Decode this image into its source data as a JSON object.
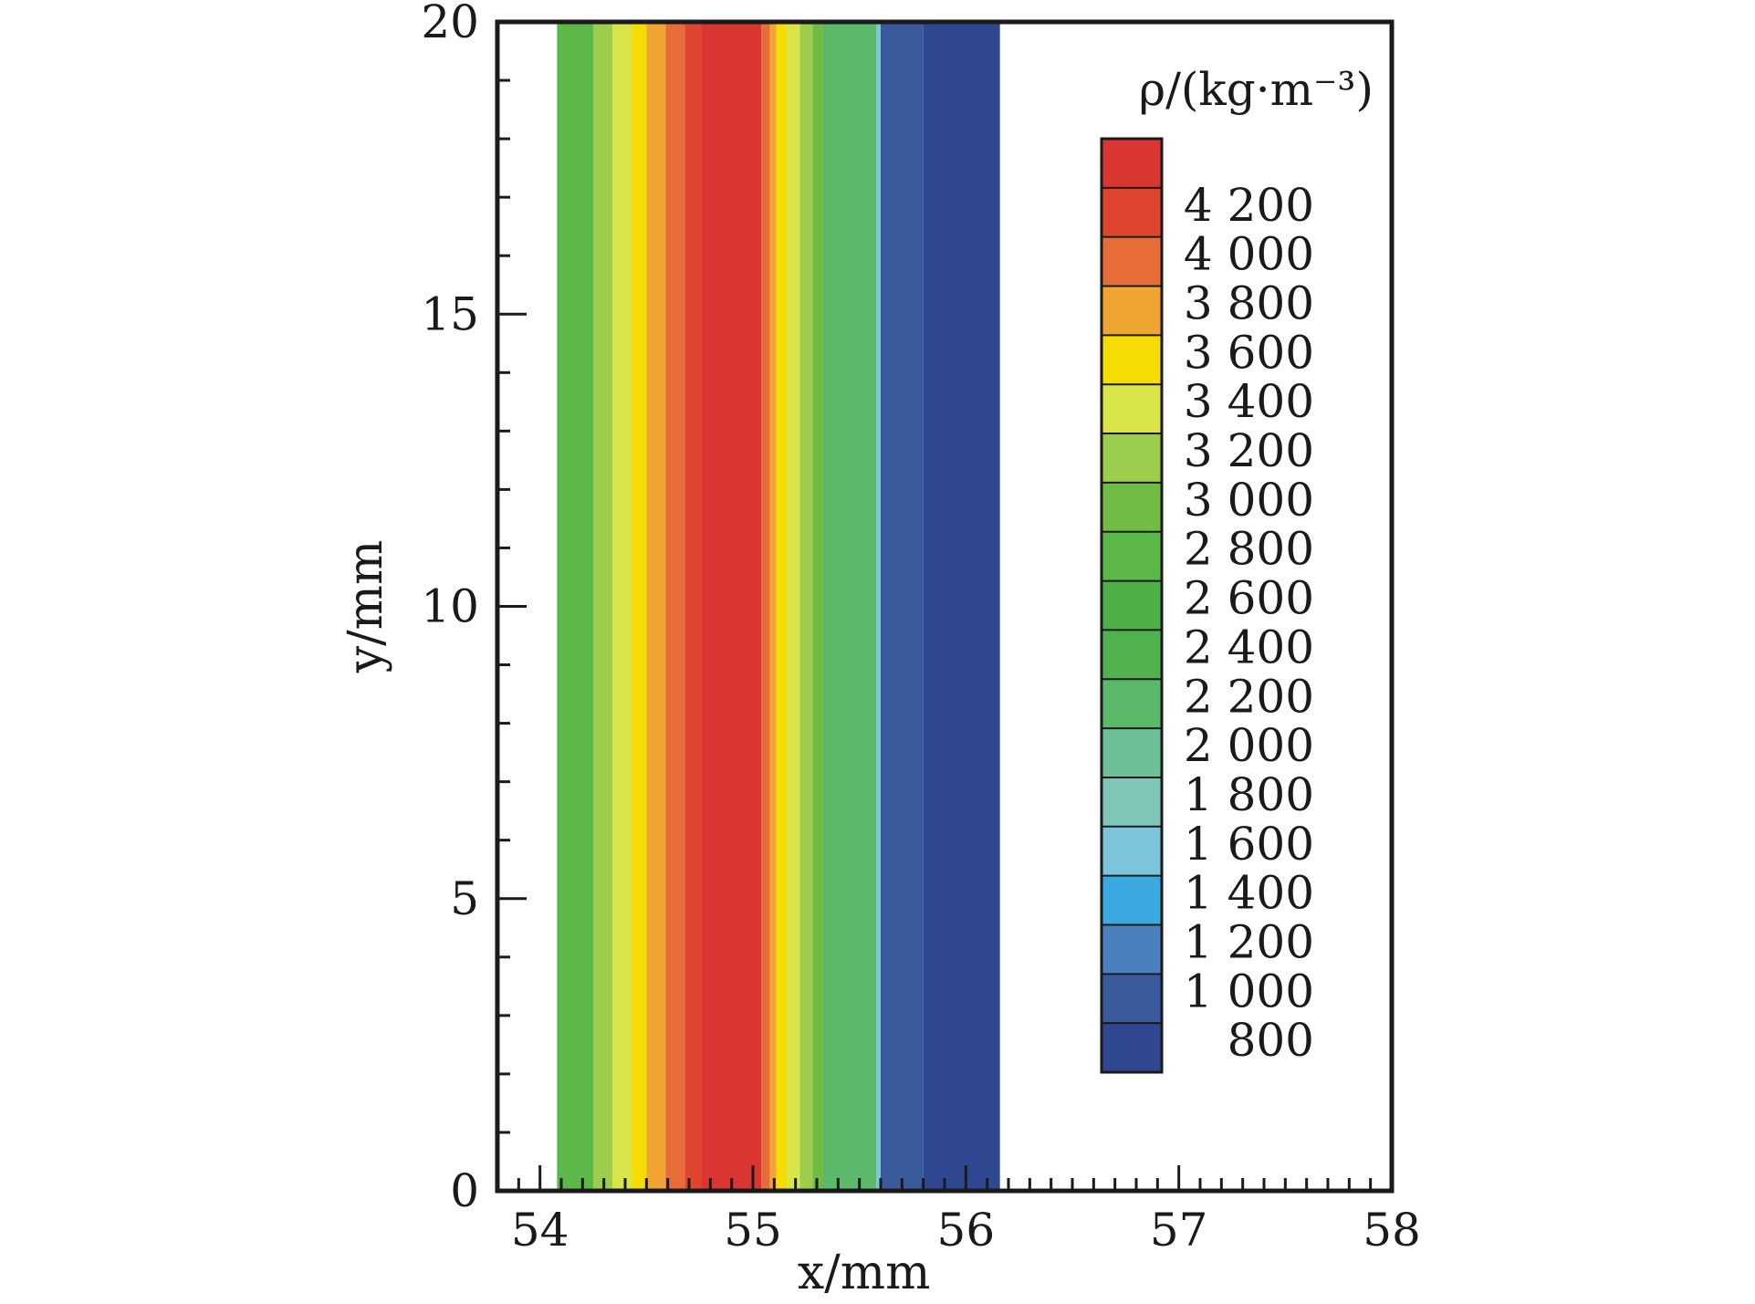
{
  "chart_data": {
    "type": "heatmap",
    "title": "",
    "xlabel": "x/mm",
    "ylabel": "y/mm",
    "xlim": [
      53.8,
      58
    ],
    "ylim": [
      0,
      20
    ],
    "x_ticks": [
      54,
      55,
      56,
      57,
      58
    ],
    "x_tick_labels": [
      "54",
      "55",
      "56",
      "57",
      "58"
    ],
    "y_ticks": [
      0,
      5,
      10,
      15,
      20
    ],
    "y_tick_labels": [
      "0",
      "5",
      "10",
      "15",
      "20"
    ],
    "x_minor_step": 0.1,
    "y_minor_step": 1,
    "grid": false,
    "colorbar": {
      "title": "ρ/(kg·m⁻³)",
      "placement": "top-right",
      "levels": [
        800,
        1000,
        1200,
        1400,
        1600,
        1800,
        2000,
        2200,
        2400,
        2600,
        2800,
        3000,
        3200,
        3400,
        3600,
        3800,
        4000,
        4200
      ],
      "labels": [
        "800",
        "1 000",
        "1 200",
        "1 400",
        "1 600",
        "1 800",
        "2 000",
        "2 200",
        "2 400",
        "2 600",
        "2 800",
        "3 000",
        "3 200",
        "3 400",
        "3 600",
        "3 800",
        "4 000",
        "4 200"
      ],
      "colors": [
        "#2f4690",
        "#3a5a9e",
        "#4a7fc0",
        "#3aa9df",
        "#7cc5dc",
        "#80c6b8",
        "#6cbf96",
        "#5cb86a",
        "#52b24f",
        "#4cb047",
        "#5db84a",
        "#72bb44",
        "#9ccd4d",
        "#d8e448",
        "#f6dc05",
        "#f0a532",
        "#e66d37",
        "#e0462f",
        "#d93632"
      ]
    },
    "bands": [
      {
        "x0": 54.08,
        "x1": 54.25,
        "value": 2700,
        "color": "#5db84a"
      },
      {
        "x0": 54.25,
        "x1": 54.34,
        "value": 3100,
        "color": "#9ccd4d"
      },
      {
        "x0": 54.34,
        "x1": 54.43,
        "value": 3300,
        "color": "#d8e448"
      },
      {
        "x0": 54.43,
        "x1": 54.5,
        "value": 3500,
        "color": "#f6dc05"
      },
      {
        "x0": 54.5,
        "x1": 54.59,
        "value": 3700,
        "color": "#f0a532"
      },
      {
        "x0": 54.59,
        "x1": 54.68,
        "value": 3900,
        "color": "#e66d37"
      },
      {
        "x0": 54.68,
        "x1": 54.76,
        "value": 4100,
        "color": "#e0462f"
      },
      {
        "x0": 54.76,
        "x1": 55.04,
        "value": 4250,
        "color": "#d93632"
      },
      {
        "x0": 55.04,
        "x1": 55.08,
        "value": 3900,
        "color": "#e66d37"
      },
      {
        "x0": 55.08,
        "x1": 55.11,
        "value": 3700,
        "color": "#f0a532"
      },
      {
        "x0": 55.11,
        "x1": 55.16,
        "value": 3450,
        "color": "#f6dc05"
      },
      {
        "x0": 55.16,
        "x1": 55.22,
        "value": 3300,
        "color": "#d8e448"
      },
      {
        "x0": 55.22,
        "x1": 55.28,
        "value": 3100,
        "color": "#9ccd4d"
      },
      {
        "x0": 55.28,
        "x1": 55.33,
        "value": 2900,
        "color": "#72bb44"
      },
      {
        "x0": 55.33,
        "x1": 55.58,
        "value": 2300,
        "color": "#5cb86a"
      },
      {
        "x0": 55.58,
        "x1": 55.6,
        "value": 1600,
        "color": "#7cc5dc"
      },
      {
        "x0": 55.6,
        "x1": 55.8,
        "value": 1100,
        "color": "#3a5a9e"
      },
      {
        "x0": 55.8,
        "x1": 56.16,
        "value": 900,
        "color": "#2f4690"
      }
    ]
  }
}
